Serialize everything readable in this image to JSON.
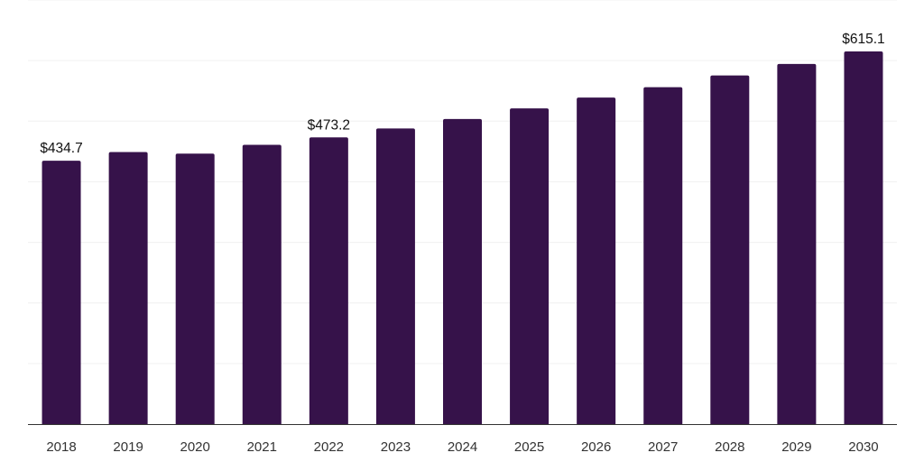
{
  "chart_data": {
    "type": "bar",
    "title": "",
    "xlabel": "",
    "ylabel": "",
    "categories": [
      "2018",
      "2019",
      "2020",
      "2021",
      "2022",
      "2023",
      "2024",
      "2025",
      "2026",
      "2027",
      "2028",
      "2029",
      "2030"
    ],
    "values": [
      434.7,
      449.0,
      446.5,
      461.0,
      473.2,
      488.0,
      503.5,
      521.0,
      539.0,
      556.0,
      575.5,
      594.5,
      615.1
    ],
    "data_labels": [
      {
        "index": 0,
        "text": "$434.7"
      },
      {
        "index": 4,
        "text": "$473.2"
      },
      {
        "index": 12,
        "text": "$615.1"
      }
    ],
    "ylim": [
      0,
      700
    ],
    "grid": true,
    "legend": "none",
    "colors": {
      "bar": "#36124a",
      "grid": "#f0f0f0",
      "axis": "#333333"
    }
  }
}
